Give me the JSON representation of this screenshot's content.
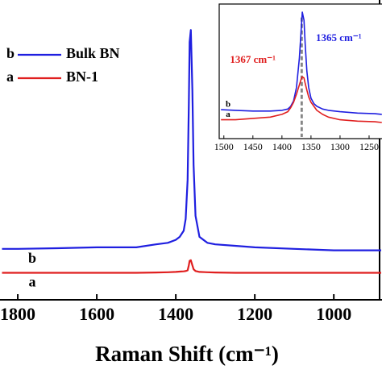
{
  "chart_data": [
    {
      "type": "line",
      "xlabel": "Raman Shift (cm⁻¹)",
      "xlim": [
        1845,
        878
      ],
      "ylim": [
        0,
        100
      ],
      "xticks": [
        1800,
        1600,
        1400,
        1200,
        1000
      ],
      "x": [
        1840,
        1800,
        1700,
        1600,
        1500,
        1450,
        1420,
        1400,
        1390,
        1380,
        1375,
        1370,
        1367,
        1365,
        1362,
        1358,
        1355,
        1350,
        1340,
        1320,
        1300,
        1250,
        1200,
        1100,
        1000,
        900,
        880
      ],
      "series": [
        {
          "name": "Bulk BN",
          "label": "b",
          "color": "#1f1fe0",
          "values": [
            17,
            17,
            17.2,
            17.5,
            17.5,
            18.5,
            19,
            20,
            21,
            23,
            27,
            40,
            65,
            86,
            90,
            70,
            45,
            28,
            21,
            19,
            18.5,
            18,
            17.5,
            17,
            16.5,
            16.5,
            16.5
          ]
        },
        {
          "name": "BN-1",
          "label": "a",
          "color": "#e01f1f",
          "values": [
            9,
            9,
            9,
            9,
            9,
            9.1,
            9.2,
            9.3,
            9.4,
            9.5,
            9.6,
            9.8,
            11.5,
            13,
            13.2,
            11.5,
            10.2,
            9.6,
            9.3,
            9.2,
            9.1,
            9,
            9,
            9,
            9,
            9,
            9
          ]
        }
      ]
    },
    {
      "type": "line",
      "xlim": [
        1508,
        1225
      ],
      "ylim": [
        0,
        100
      ],
      "xticks": [
        1500,
        1450,
        1400,
        1350,
        1300,
        1250
      ],
      "vlines": [
        1367,
        1365
      ],
      "annotations": [
        {
          "text": "1365 cm⁻¹",
          "color": "#1f1fe0"
        },
        {
          "text": "1367 cm⁻¹",
          "color": "#e01f1f"
        }
      ],
      "x": [
        1505,
        1480,
        1450,
        1420,
        1400,
        1390,
        1385,
        1380,
        1375,
        1370,
        1367,
        1365,
        1362,
        1360,
        1357,
        1354,
        1350,
        1345,
        1340,
        1330,
        1320,
        1300,
        1270,
        1240,
        1228
      ],
      "series": [
        {
          "label": "b",
          "color": "#1f1fe0",
          "values": [
            21.5,
            21,
            20.5,
            20.5,
            21,
            22,
            24,
            28,
            38,
            60,
            80,
            94,
            88,
            70,
            50,
            38,
            30,
            26,
            24,
            22,
            21,
            20,
            19,
            18.5,
            18
          ]
        },
        {
          "label": "a",
          "color": "#e01f1f",
          "values": [
            14,
            14,
            15,
            16,
            18,
            20,
            23,
            27,
            33,
            40,
            44,
            46,
            45,
            41,
            36,
            31,
            27,
            24,
            21,
            18,
            16,
            14,
            13,
            12.5,
            12
          ]
        }
      ]
    }
  ]
}
